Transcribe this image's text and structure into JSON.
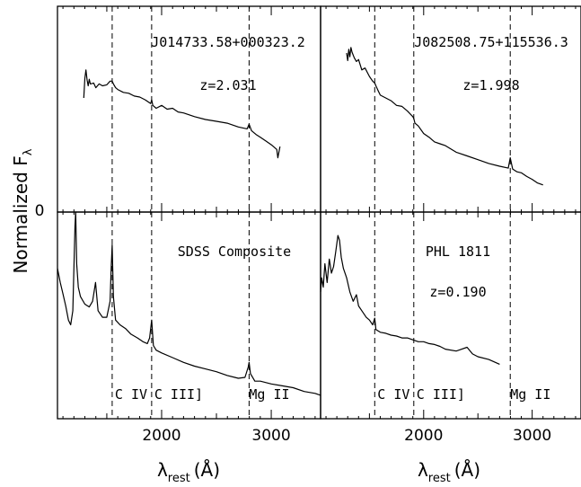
{
  "figure": {
    "ylabel": "Normalized F",
    "ylabel_sub": "λ",
    "zero_label": "0",
    "xlabel": "λ",
    "xlabel_sub": "rest",
    "xlabel_unit": "(Å)"
  },
  "chart_data": [
    {
      "type": "line",
      "object": "J014733.58+000323.2",
      "redshift_label": "z=2.031",
      "xlim": [
        1050,
        3450
      ],
      "ylim": [
        0,
        2.2
      ],
      "xticks": [
        2000,
        3000
      ],
      "line_markers": [
        {
          "label": "C IV",
          "x": 1549
        },
        {
          "label": "C III]",
          "x": 1909
        },
        {
          "label": "Mg II",
          "x": 2798
        }
      ],
      "series": [
        {
          "x": [
            1290,
            1300,
            1310,
            1320,
            1330,
            1340,
            1350,
            1380,
            1400,
            1430,
            1460,
            1500,
            1530,
            1549,
            1560,
            1580,
            1600,
            1650,
            1700,
            1750,
            1800,
            1850,
            1900,
            1909,
            1920,
            1950,
            2000,
            2050,
            2100,
            2150,
            2200,
            2300,
            2400,
            2500,
            2600,
            2700,
            2780,
            2798,
            2820,
            2860,
            2900,
            2950,
            3000,
            3050,
            3060,
            3080
          ],
          "y": [
            1.22,
            1.43,
            1.52,
            1.41,
            1.35,
            1.42,
            1.37,
            1.38,
            1.33,
            1.37,
            1.35,
            1.36,
            1.4,
            1.4,
            1.37,
            1.33,
            1.31,
            1.28,
            1.27,
            1.24,
            1.23,
            1.2,
            1.16,
            1.2,
            1.14,
            1.11,
            1.14,
            1.1,
            1.11,
            1.07,
            1.06,
            1.02,
            0.99,
            0.97,
            0.95,
            0.91,
            0.89,
            0.94,
            0.87,
            0.83,
            0.8,
            0.76,
            0.72,
            0.67,
            0.58,
            0.7
          ]
        }
      ]
    },
    {
      "type": "line",
      "object": "J082508.75+115536.3",
      "redshift_label": "z=1.998",
      "xlim": [
        1050,
        3450
      ],
      "ylim": [
        0,
        2.2
      ],
      "xticks": [
        2000,
        3000
      ],
      "line_markers": [
        {
          "label": "C IV",
          "x": 1549
        },
        {
          "label": "C III]",
          "x": 1909
        },
        {
          "label": "Mg II",
          "x": 2798
        }
      ],
      "series": [
        {
          "x": [
            1290,
            1300,
            1310,
            1320,
            1330,
            1340,
            1360,
            1380,
            1400,
            1430,
            1460,
            1500,
            1530,
            1549,
            1560,
            1580,
            1600,
            1650,
            1700,
            1750,
            1800,
            1850,
            1900,
            1909,
            1920,
            1950,
            2000,
            2050,
            2100,
            2150,
            2200,
            2300,
            2400,
            2500,
            2600,
            2700,
            2780,
            2798,
            2820,
            2860,
            2900,
            2950,
            3000,
            3050,
            3100
          ],
          "y": [
            1.7,
            1.62,
            1.74,
            1.66,
            1.76,
            1.71,
            1.65,
            1.61,
            1.63,
            1.52,
            1.54,
            1.45,
            1.4,
            1.38,
            1.35,
            1.3,
            1.25,
            1.22,
            1.19,
            1.14,
            1.13,
            1.08,
            1.02,
            1.0,
            0.95,
            0.92,
            0.84,
            0.8,
            0.75,
            0.73,
            0.71,
            0.64,
            0.6,
            0.56,
            0.52,
            0.49,
            0.47,
            0.58,
            0.46,
            0.43,
            0.42,
            0.38,
            0.35,
            0.31,
            0.29
          ]
        }
      ]
    },
    {
      "type": "line",
      "object": "SDSS Composite",
      "redshift_label": "",
      "xlim": [
        1050,
        3450
      ],
      "ylim": [
        0,
        2.2
      ],
      "xticks": [
        2000,
        3000
      ],
      "line_markers": [
        {
          "label": "C IV",
          "x": 1549
        },
        {
          "label": "C III]",
          "x": 1909
        },
        {
          "label": "Mg II",
          "x": 2798
        }
      ],
      "series": [
        {
          "x": [
            1050,
            1075,
            1100,
            1125,
            1150,
            1170,
            1190,
            1200,
            1210,
            1216,
            1225,
            1240,
            1260,
            1300,
            1340,
            1370,
            1397,
            1420,
            1460,
            1500,
            1530,
            1540,
            1549,
            1560,
            1580,
            1620,
            1670,
            1720,
            1780,
            1830,
            1870,
            1890,
            1909,
            1925,
            1950,
            2000,
            2100,
            2200,
            2300,
            2400,
            2500,
            2600,
            2700,
            2760,
            2790,
            2798,
            2810,
            2850,
            2900,
            3000,
            3100,
            3200,
            3300,
            3400,
            3450
          ],
          "y": [
            1.6,
            1.45,
            1.33,
            1.2,
            1.05,
            1.0,
            1.15,
            1.6,
            2.05,
            2.2,
            1.65,
            1.4,
            1.3,
            1.22,
            1.19,
            1.25,
            1.45,
            1.15,
            1.08,
            1.08,
            1.25,
            1.6,
            1.85,
            1.3,
            1.05,
            1.0,
            0.96,
            0.9,
            0.86,
            0.82,
            0.8,
            0.86,
            1.05,
            0.78,
            0.73,
            0.7,
            0.65,
            0.6,
            0.56,
            0.53,
            0.5,
            0.46,
            0.43,
            0.44,
            0.55,
            0.6,
            0.48,
            0.4,
            0.4,
            0.37,
            0.35,
            0.33,
            0.29,
            0.27,
            0.25
          ]
        }
      ]
    },
    {
      "type": "line",
      "object": "PHL 1811",
      "redshift_label": "z=0.190",
      "xlim": [
        1050,
        3450
      ],
      "ylim": [
        0,
        2.2
      ],
      "xticks": [
        2000,
        3000
      ],
      "line_markers": [
        {
          "label": "C IV",
          "x": 1549
        },
        {
          "label": "C III]",
          "x": 1909
        },
        {
          "label": "Mg II",
          "x": 2798
        }
      ],
      "series": [
        {
          "x": [
            1050,
            1060,
            1075,
            1090,
            1110,
            1130,
            1150,
            1170,
            1190,
            1210,
            1225,
            1240,
            1260,
            1290,
            1320,
            1350,
            1380,
            1400,
            1430,
            1470,
            1500,
            1530,
            1549,
            1560,
            1600,
            1650,
            1700,
            1750,
            1800,
            1850,
            1900,
            1950,
            2000,
            2050,
            2100,
            2150,
            2200,
            2300,
            2400,
            2450,
            2500,
            2600,
            2700
          ],
          "y": [
            1.35,
            1.5,
            1.4,
            1.65,
            1.45,
            1.7,
            1.55,
            1.62,
            1.78,
            1.95,
            1.9,
            1.72,
            1.6,
            1.5,
            1.35,
            1.25,
            1.32,
            1.2,
            1.15,
            1.08,
            1.05,
            1.0,
            1.07,
            0.95,
            0.92,
            0.91,
            0.89,
            0.88,
            0.86,
            0.86,
            0.84,
            0.82,
            0.82,
            0.8,
            0.79,
            0.77,
            0.74,
            0.72,
            0.76,
            0.69,
            0.66,
            0.63,
            0.58
          ]
        }
      ]
    }
  ]
}
